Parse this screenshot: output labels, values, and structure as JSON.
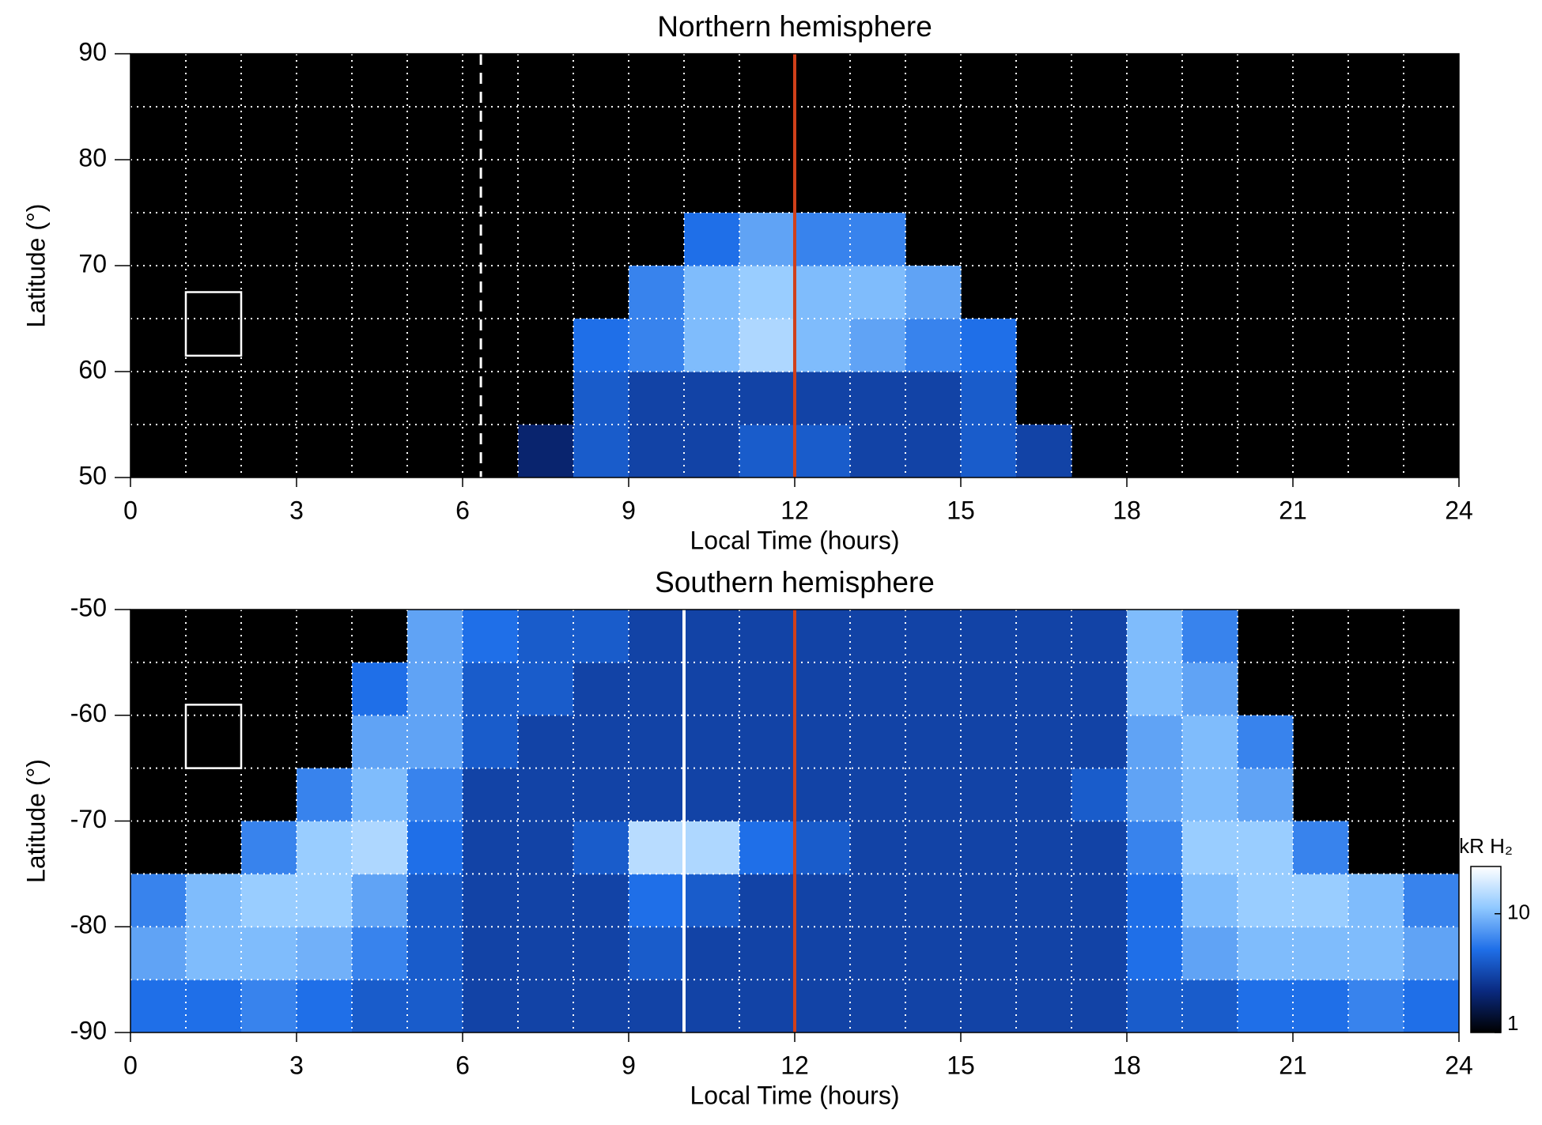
{
  "chart_data": [
    {
      "type": "heatmap",
      "title": "Northern hemisphere",
      "xlabel": "Local Time (hours)",
      "ylabel": "Latitude (°)",
      "xlim": [
        0,
        24
      ],
      "xticks": [
        0,
        3,
        6,
        9,
        12,
        15,
        18,
        21,
        24
      ],
      "ylim": [
        50,
        90
      ],
      "yticks": [
        50,
        60,
        70,
        80,
        90
      ],
      "grid": true,
      "xbins": [
        0,
        1,
        2,
        3,
        4,
        5,
        6,
        7,
        8,
        9,
        10,
        11,
        12,
        13,
        14,
        15,
        16,
        17,
        18,
        19,
        20,
        21,
        22,
        23,
        24
      ],
      "ybins": [
        50,
        55,
        60,
        65,
        70,
        75,
        80,
        85,
        90
      ],
      "z": [
        [
          null,
          null,
          null,
          null,
          null,
          null,
          null,
          2,
          4,
          3,
          3,
          4,
          4,
          3,
          3,
          4,
          3,
          null,
          null,
          null,
          null,
          null,
          null,
          null
        ],
        [
          null,
          null,
          null,
          null,
          null,
          null,
          null,
          null,
          4,
          3,
          3,
          3,
          3,
          3,
          3,
          4,
          null,
          null,
          null,
          null,
          null,
          null,
          null,
          null
        ],
        [
          null,
          null,
          null,
          null,
          null,
          null,
          null,
          null,
          5,
          6,
          10,
          14,
          10,
          8,
          6,
          5,
          null,
          null,
          null,
          null,
          null,
          null,
          null,
          null
        ],
        [
          null,
          null,
          null,
          null,
          null,
          null,
          null,
          null,
          null,
          6,
          10,
          12,
          10,
          10,
          8,
          null,
          null,
          null,
          null,
          null,
          null,
          null,
          null,
          null
        ],
        [
          null,
          null,
          null,
          null,
          null,
          null,
          null,
          null,
          null,
          null,
          5,
          8,
          6,
          6,
          null,
          null,
          null,
          null,
          null,
          null,
          null,
          null,
          null,
          null
        ],
        [
          null,
          null,
          null,
          null,
          null,
          null,
          null,
          null,
          null,
          null,
          null,
          null,
          null,
          null,
          null,
          null,
          null,
          null,
          null,
          null,
          null,
          null,
          null,
          null
        ],
        [
          null,
          null,
          null,
          null,
          null,
          null,
          null,
          null,
          null,
          null,
          null,
          null,
          null,
          null,
          null,
          null,
          null,
          null,
          null,
          null,
          null,
          null,
          null,
          null
        ],
        [
          null,
          null,
          null,
          null,
          null,
          null,
          null,
          null,
          null,
          null,
          null,
          null,
          null,
          null,
          null,
          null,
          null,
          null,
          null,
          null,
          null,
          null,
          null,
          null
        ]
      ],
      "colormap": [
        "#000000",
        "#0a2a80",
        "#1f6fe8",
        "#8fc8ff",
        "#ffffff"
      ],
      "vlines": [
        {
          "x": 6.33,
          "color": "#ffffff",
          "dash": true
        },
        {
          "x": 12,
          "color": "#d0401a",
          "dash": false
        }
      ],
      "boxes": [
        {
          "x": [
            1,
            2
          ],
          "y": [
            61.5,
            67.5
          ],
          "color": "#ffffff"
        }
      ]
    },
    {
      "type": "heatmap",
      "title": "Southern hemisphere",
      "xlabel": "Local Time (hours)",
      "ylabel": "Latitude (°)",
      "xlim": [
        0,
        24
      ],
      "xticks": [
        0,
        3,
        6,
        9,
        12,
        15,
        18,
        21,
        24
      ],
      "ylim": [
        -90,
        -50
      ],
      "yticks": [
        -90,
        -80,
        -70,
        -60,
        -50
      ],
      "grid": true,
      "xbins": [
        0,
        1,
        2,
        3,
        4,
        5,
        6,
        7,
        8,
        9,
        10,
        11,
        12,
        13,
        14,
        15,
        16,
        17,
        18,
        19,
        20,
        21,
        22,
        23,
        24
      ],
      "ybins": [
        -90,
        -85,
        -80,
        -75,
        -70,
        -65,
        -60,
        -55,
        -50
      ],
      "z": [
        [
          5,
          5,
          6,
          5,
          4,
          4,
          3,
          3,
          3,
          3,
          3,
          3,
          3,
          3,
          3,
          3,
          3,
          3,
          4,
          4,
          5,
          5,
          6,
          5
        ],
        [
          8,
          10,
          10,
          9,
          6,
          4,
          3,
          3,
          3,
          4,
          3,
          3,
          3,
          3,
          3,
          3,
          3,
          3,
          5,
          8,
          10,
          10,
          10,
          8
        ],
        [
          6,
          10,
          12,
          12,
          8,
          4,
          3,
          3,
          3,
          5,
          4,
          3,
          3,
          3,
          3,
          3,
          3,
          3,
          5,
          10,
          12,
          12,
          10,
          6
        ],
        [
          null,
          null,
          6,
          12,
          14,
          5,
          3,
          3,
          4,
          15,
          14,
          5,
          4,
          3,
          3,
          3,
          3,
          3,
          6,
          12,
          12,
          6,
          null,
          null
        ],
        [
          null,
          null,
          null,
          6,
          10,
          6,
          3,
          3,
          3,
          3,
          3,
          3,
          3,
          3,
          3,
          3,
          3,
          4,
          8,
          10,
          8,
          null,
          null,
          null
        ],
        [
          null,
          null,
          null,
          null,
          8,
          8,
          4,
          3,
          3,
          3,
          3,
          3,
          3,
          3,
          3,
          3,
          3,
          3,
          8,
          10,
          6,
          null,
          null,
          null
        ],
        [
          null,
          null,
          null,
          null,
          5,
          8,
          4,
          4,
          3,
          3,
          3,
          3,
          3,
          3,
          3,
          3,
          3,
          3,
          10,
          8,
          null,
          null,
          null,
          null
        ],
        [
          null,
          null,
          null,
          null,
          null,
          8,
          5,
          4,
          4,
          3,
          3,
          3,
          3,
          3,
          3,
          3,
          3,
          3,
          10,
          6,
          null,
          null,
          null,
          null
        ]
      ],
      "colormap": [
        "#000000",
        "#0a2a80",
        "#1f6fe8",
        "#8fc8ff",
        "#ffffff"
      ],
      "vlines": [
        {
          "x": 10,
          "color": "#ffffff",
          "dash": false
        },
        {
          "x": 12,
          "color": "#d0401a",
          "dash": false
        }
      ],
      "boxes": [
        {
          "x": [
            1,
            2
          ],
          "y": [
            -59,
            -65
          ],
          "color": "#ffffff"
        }
      ],
      "colorbar": {
        "label": "kR H₂",
        "lim": [
          1,
          25
        ],
        "ticks": [
          1,
          10
        ],
        "log": true
      }
    }
  ]
}
